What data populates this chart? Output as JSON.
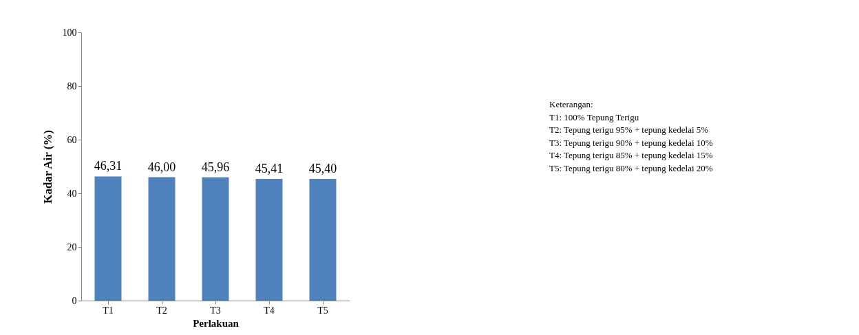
{
  "chart_data": {
    "type": "bar",
    "categories": [
      "T1",
      "T2",
      "T3",
      "T4",
      "T5"
    ],
    "values": [
      46.31,
      46.0,
      45.96,
      45.41,
      45.4
    ],
    "value_labels": [
      "46,31",
      "46,00",
      "45,96",
      "45,41",
      "45,40"
    ],
    "color": "#4f81bd",
    "xlabel": "Perlakuan",
    "ylabel": "Kadar Air (%)",
    "ylim": [
      0,
      100
    ],
    "yticks": [
      0,
      20,
      40,
      60,
      80,
      100
    ],
    "grid": false,
    "annotations": [
      "Keterangan:",
      "T1: 100% Tepung Terigu",
      "T2: Tepung terigu 95% + tepung kedelai 5%",
      "T3: Tepung terigu 90% + tepung kedelai 10%",
      "T4: Tepung terigu 85% + tepung kedelai 15%",
      "T5: Tepung terigu 80% + tepung kedelai 20%"
    ]
  }
}
